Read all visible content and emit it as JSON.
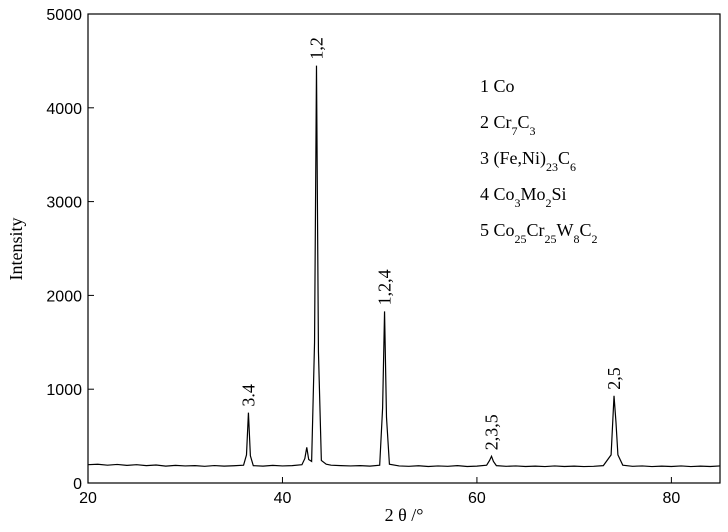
{
  "chart_data": {
    "type": "line",
    "x_label": "2 θ /°",
    "y_label": "Intensity",
    "xlim": [
      20,
      85
    ],
    "ylim": [
      0,
      5000
    ],
    "xticks": [
      20,
      40,
      60,
      80
    ],
    "yticks": [
      0,
      1000,
      2000,
      3000,
      4000,
      5000
    ],
    "color": "#000000",
    "x": [
      20,
      21,
      22,
      23,
      24,
      25,
      26,
      27,
      28,
      29,
      30,
      31,
      32,
      33,
      34,
      35,
      36,
      36.3,
      36.5,
      36.7,
      37,
      38,
      39,
      40,
      41,
      42,
      42.3,
      42.5,
      42.7,
      43,
      43.3,
      43.5,
      43.7,
      44,
      44.5,
      45,
      46,
      47,
      48,
      49,
      50,
      50.3,
      50.5,
      50.7,
      51,
      52,
      53,
      54,
      55,
      56,
      57,
      58,
      59,
      60,
      61,
      61.3,
      61.5,
      61.7,
      62,
      63,
      64,
      65,
      66,
      67,
      68,
      69,
      70,
      71,
      72,
      73,
      73.8,
      74.1,
      74.3,
      74.5,
      75,
      76,
      77,
      78,
      79,
      80,
      81,
      82,
      83,
      84,
      85
    ],
    "values": [
      195,
      200,
      190,
      198,
      188,
      195,
      185,
      192,
      180,
      188,
      182,
      185,
      178,
      186,
      180,
      184,
      190,
      300,
      750,
      290,
      185,
      180,
      188,
      182,
      185,
      195,
      260,
      380,
      250,
      230,
      1500,
      4450,
      1400,
      240,
      200,
      190,
      185,
      182,
      185,
      180,
      190,
      800,
      1830,
      700,
      200,
      182,
      178,
      184,
      176,
      182,
      178,
      185,
      176,
      180,
      190,
      240,
      285,
      230,
      185,
      178,
      182,
      176,
      180,
      175,
      182,
      176,
      180,
      175,
      178,
      185,
      300,
      930,
      650,
      300,
      190,
      178,
      182,
      175,
      180,
      176,
      182,
      175,
      180,
      176,
      182
    ],
    "annotations": [
      {
        "text": "3.4",
        "x": 36.5
      },
      {
        "text": "1,2",
        "x": 43.5
      },
      {
        "text": "1,2,4",
        "x": 50.5
      },
      {
        "text": "2,3,5",
        "x": 61.5
      },
      {
        "text": "2,5",
        "x": 74.1
      }
    ],
    "legend": [
      [
        "1 Co"
      ],
      [
        "2 Cr",
        "7",
        "C",
        "3"
      ],
      [
        "3 (Fe,Ni)",
        "23",
        "C",
        "6"
      ],
      [
        "4 Co",
        "3",
        "Mo",
        "2",
        "Si"
      ],
      [
        "5 Co",
        "25",
        "Cr",
        "25",
        "W",
        "8",
        "C",
        "2"
      ]
    ]
  }
}
